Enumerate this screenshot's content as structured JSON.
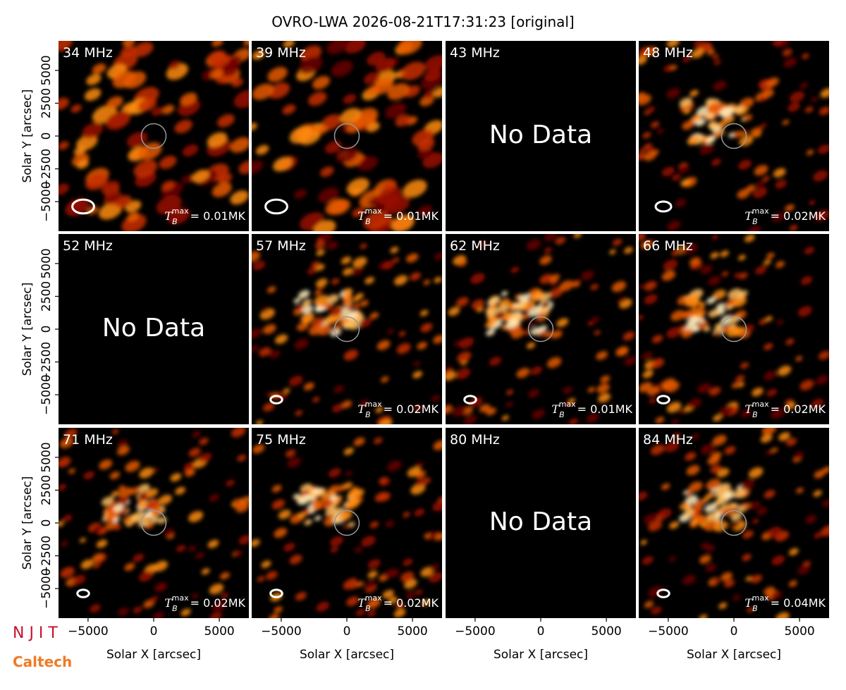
{
  "chart_data": {
    "type": "image-grid",
    "title": "OVRO-LWA 2026-08-21T17:31:23 [original]",
    "xlabel": "Solar X [arcsec]",
    "ylabel": "Solar Y [arcsec]",
    "xlim": [
      -7250,
      7250
    ],
    "ylim": [
      -7250,
      7250
    ],
    "xticks": [
      {
        "value": -5000,
        "label": "−5000"
      },
      0,
      5000
    ],
    "yticks": [
      {
        "value": -5000,
        "label": "−5000"
      },
      {
        "value": -2500,
        "label": "−2500"
      },
      0,
      2500,
      5000
    ],
    "tb_symbol": "T",
    "tb_sub": "B",
    "tb_sup": "max",
    "no_data_text": "No Data",
    "panels": [
      {
        "freq": "34 MHz",
        "tb_max": "= 0.01MK"
      },
      {
        "freq": "39 MHz",
        "tb_max": "= 0.01MK"
      },
      {
        "freq": "43 MHz",
        "no_data": true
      },
      {
        "freq": "48 MHz",
        "tb_max": "= 0.02MK"
      },
      {
        "freq": "52 MHz",
        "no_data": true
      },
      {
        "freq": "57 MHz",
        "tb_max": "= 0.02MK"
      },
      {
        "freq": "62 MHz",
        "tb_max": "= 0.01MK"
      },
      {
        "freq": "66 MHz",
        "tb_max": "= 0.02MK"
      },
      {
        "freq": "71 MHz",
        "tb_max": "= 0.02MK"
      },
      {
        "freq": "75 MHz",
        "tb_max": "= 0.02MK"
      },
      {
        "freq": "80 MHz",
        "no_data": true
      },
      {
        "freq": "84 MHz",
        "tb_max": "= 0.04MK"
      }
    ]
  },
  "logos": [
    "N J I T",
    "Caltech"
  ]
}
